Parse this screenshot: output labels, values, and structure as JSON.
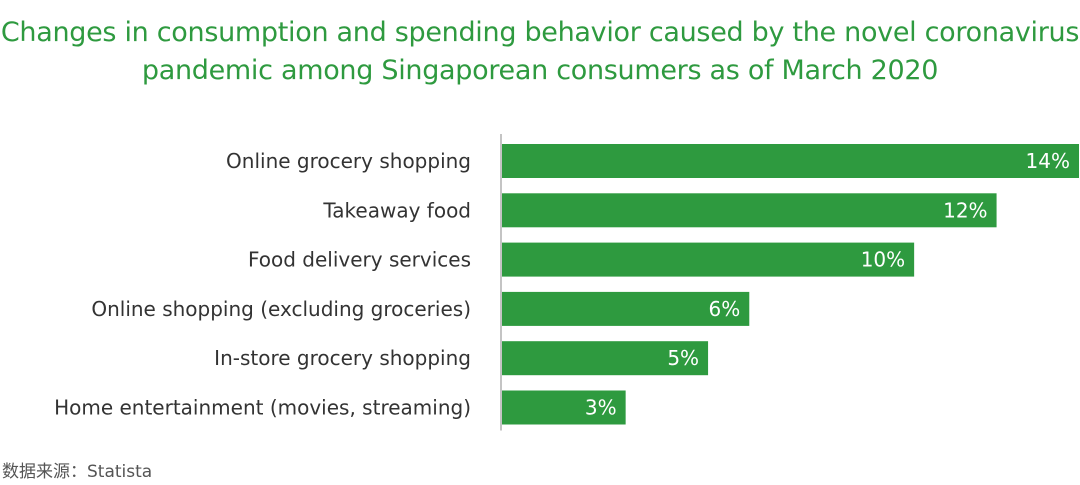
{
  "chart_data": {
    "type": "bar",
    "orientation": "horizontal",
    "title_lines": [
      "Changes in consumption and spending behavior caused by the novel coronavirus",
      "pandemic among Singaporean consumers as of March 2020"
    ],
    "categories": [
      "Online grocery shopping",
      "Takeaway food",
      "Food delivery services",
      "Online shopping (excluding groceries)",
      "In-store grocery shopping",
      "Home entertainment (movies, streaming)"
    ],
    "values": [
      14,
      12,
      10,
      6,
      5,
      3
    ],
    "value_labels": [
      "14%",
      "12%",
      "10%",
      "6%",
      "5%",
      "3%"
    ],
    "xlim": [
      0,
      14
    ],
    "grid": false,
    "legend": "none",
    "colors": {
      "bar": "#2e9a3f",
      "title": "#2e9a3f",
      "bar_label": "#ffffff",
      "category_label": "#333333",
      "axis": "#888888"
    }
  },
  "source_note": "数据来源：Statista"
}
